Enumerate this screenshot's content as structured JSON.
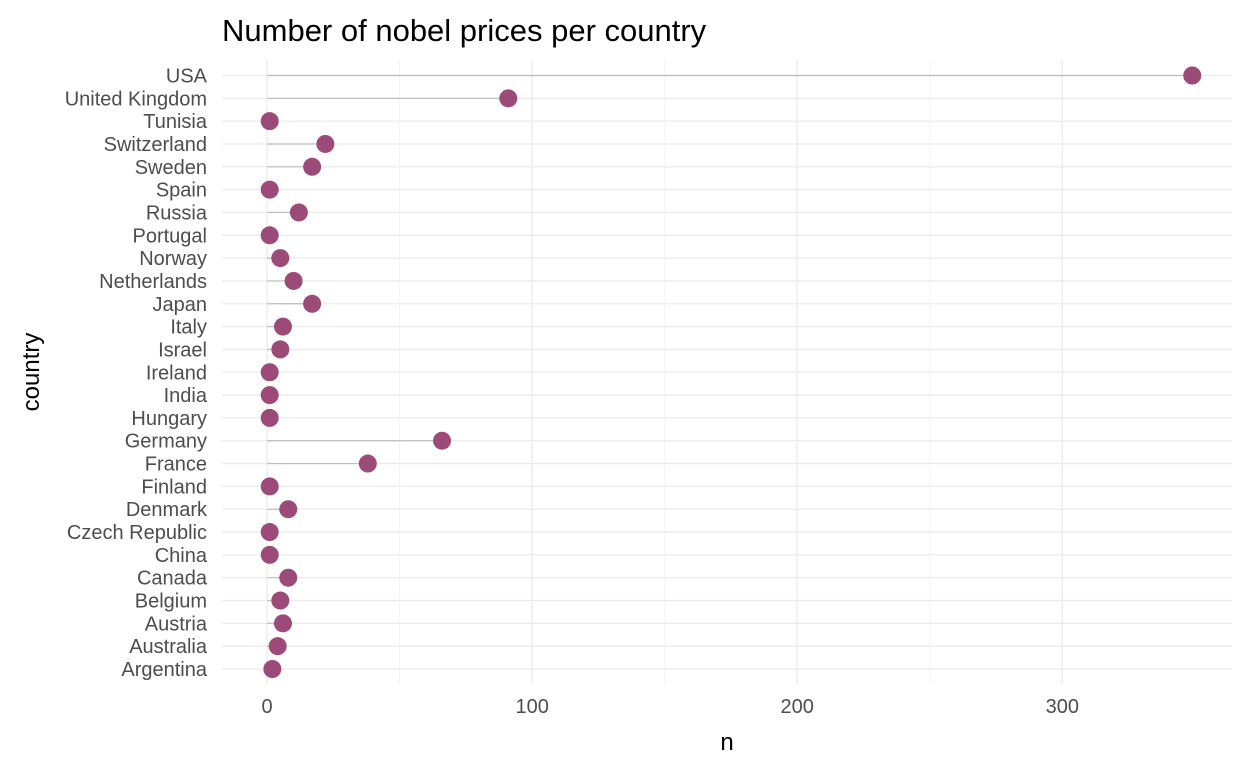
{
  "chart_data": {
    "type": "lollipop",
    "title": "Number of nobel prices per country",
    "xlabel": "n",
    "ylabel": "country",
    "xlim": [
      -17,
      364
    ],
    "x_ticks": [
      0,
      100,
      200,
      300
    ],
    "x_tick_labels": [
      "0",
      "100",
      "200",
      "300"
    ],
    "grid": true,
    "legend": "none",
    "point_color": "#9c4a78",
    "stem_color": "#bdbdbd",
    "categories": [
      "Argentina",
      "Australia",
      "Austria",
      "Belgium",
      "Canada",
      "China",
      "Czech Republic",
      "Denmark",
      "Finland",
      "France",
      "Germany",
      "Hungary",
      "India",
      "Ireland",
      "Israel",
      "Italy",
      "Japan",
      "Netherlands",
      "Norway",
      "Portugal",
      "Russia",
      "Spain",
      "Sweden",
      "Switzerland",
      "Tunisia",
      "United Kingdom",
      "USA"
    ],
    "values": [
      2,
      4,
      6,
      5,
      8,
      1,
      1,
      8,
      1,
      38,
      66,
      1,
      1,
      1,
      5,
      6,
      17,
      10,
      5,
      1,
      12,
      1,
      17,
      22,
      1,
      91,
      349
    ]
  }
}
